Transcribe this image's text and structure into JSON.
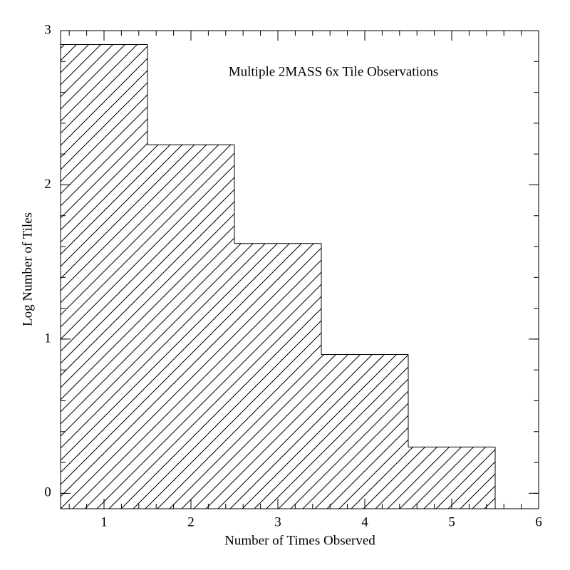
{
  "chart_data": {
    "type": "histogram",
    "title": "Multiple 2MASS 6x Tile Observations",
    "xlabel": "Number of Times Observed",
    "ylabel": "Log Number of Tiles",
    "bins": [
      0.5,
      1.5,
      2.5,
      3.5,
      4.5,
      5.5
    ],
    "values": [
      2.91,
      2.26,
      1.62,
      0.9,
      0.3
    ],
    "xlim": [
      0.5,
      6
    ],
    "ylim": [
      -0.1,
      3
    ],
    "xticks": [
      1,
      2,
      3,
      4,
      5,
      6
    ],
    "yticks": [
      0,
      1,
      2,
      3
    ],
    "color": "#000000"
  }
}
